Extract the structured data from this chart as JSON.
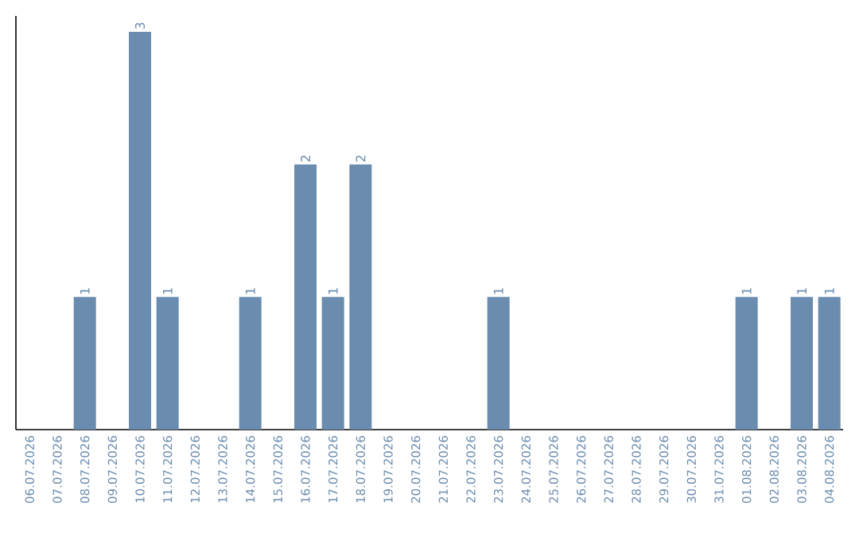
{
  "chart_data": {
    "type": "bar",
    "categories": [
      "06.07.2026",
      "07.07.2026",
      "08.07.2026",
      "09.07.2026",
      "10.07.2026",
      "11.07.2026",
      "12.07.2026",
      "13.07.2026",
      "14.07.2026",
      "15.07.2026",
      "16.07.2026",
      "17.07.2026",
      "18.07.2026",
      "19.07.2026",
      "20.07.2026",
      "21.07.2026",
      "22.07.2026",
      "23.07.2026",
      "24.07.2026",
      "25.07.2026",
      "26.07.2026",
      "27.07.2026",
      "28.07.2026",
      "29.07.2026",
      "30.07.2026",
      "31.07.2026",
      "01.08.2026",
      "02.08.2026",
      "03.08.2026",
      "04.08.2026"
    ],
    "values": [
      0,
      0,
      1,
      0,
      3,
      1,
      0,
      0,
      1,
      0,
      2,
      1,
      2,
      0,
      0,
      0,
      0,
      1,
      0,
      0,
      0,
      0,
      0,
      0,
      0,
      0,
      1,
      0,
      1,
      1
    ],
    "value_labels": [
      null,
      null,
      "1",
      null,
      "3",
      "1",
      null,
      null,
      "1",
      null,
      "2",
      "1",
      "2",
      null,
      null,
      null,
      null,
      "1",
      null,
      null,
      null,
      null,
      null,
      null,
      null,
      null,
      "1",
      null,
      "1",
      "1"
    ],
    "color": "#6a8caf",
    "grid": false
  }
}
